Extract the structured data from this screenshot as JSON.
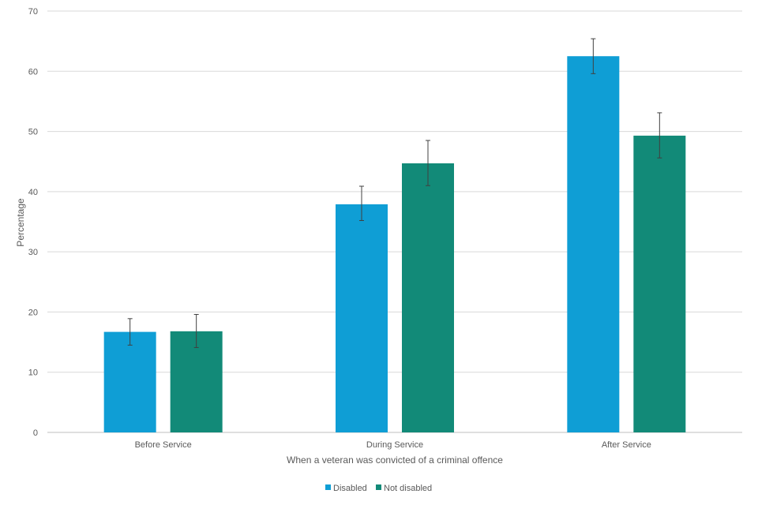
{
  "chart_data": {
    "type": "bar",
    "title": "",
    "xlabel": "When a veteran  was convicted of a criminal offence",
    "ylabel": "Percentage",
    "categories": [
      "Before Service",
      "During Service",
      "After Service"
    ],
    "ylim": [
      0,
      70
    ],
    "yticks": [
      "0",
      "10",
      "20",
      "30",
      "40",
      "50",
      "60",
      "70"
    ],
    "grid": "horizontal",
    "legend_position": "bottom",
    "series": [
      {
        "name": "Disabled",
        "color": "#0f9ed5",
        "values": [
          16.7,
          37.9,
          62.5
        ],
        "error_low": [
          14.5,
          35.2,
          59.6
        ],
        "error_high": [
          18.9,
          40.9,
          65.4
        ]
      },
      {
        "name": "Not disabled",
        "color": "#128a78",
        "values": [
          16.8,
          44.7,
          49.3
        ],
        "error_low": [
          14.1,
          41.0,
          45.6
        ],
        "error_high": [
          19.6,
          48.5,
          53.1
        ]
      }
    ]
  }
}
